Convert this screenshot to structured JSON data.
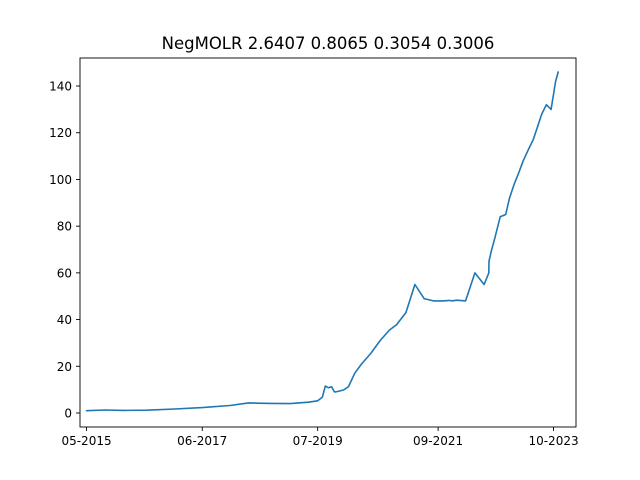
{
  "chart_data": {
    "type": "line",
    "title": "NegMOLR  2.6407 0.8065 0.3054 0.3006",
    "xlabel": "",
    "ylabel": "",
    "x_tick_labels": [
      "05-2015",
      "06-2017",
      "07-2019",
      "09-2021",
      "10-2023"
    ],
    "x_tick_dates": [
      "2015-05-01",
      "2017-06-01",
      "2019-07-01",
      "2021-09-01",
      "2023-10-01"
    ],
    "xlim": [
      "2015-03-19",
      "2024-02-26"
    ],
    "yticks": [
      0,
      20,
      40,
      60,
      80,
      100,
      120,
      140
    ],
    "ylim": [
      -6,
      152
    ],
    "grid": false,
    "colors": {
      "series": "#1f77b4"
    },
    "series": [
      {
        "x": [
          "2015-05-01",
          "2015-09-01",
          "2016-01-01",
          "2016-06-01",
          "2016-12-01",
          "2017-06-01",
          "2017-12-01",
          "2018-04-01",
          "2018-06-01",
          "2018-09-01",
          "2019-01-01",
          "2019-05-01",
          "2019-07-01",
          "2019-08-01",
          "2019-08-20",
          "2019-09-10",
          "2019-10-01",
          "2019-10-20",
          "2019-11-10",
          "2019-12-20",
          "2020-01-20",
          "2020-03-01",
          "2020-04-15",
          "2020-06-15",
          "2020-08-15",
          "2020-10-15",
          "2020-12-01",
          "2021-02-01",
          "2021-04-01",
          "2021-06-01",
          "2021-08-01",
          "2021-09-01",
          "2021-10-01",
          "2021-11-15",
          "2021-12-01",
          "2022-01-01",
          "2022-03-01",
          "2022-05-01",
          "2022-07-01",
          "2022-08-01",
          "2022-08-02",
          "2022-08-20",
          "2022-09-10",
          "2022-10-15",
          "2022-11-20",
          "2022-12-15",
          "2023-01-15",
          "2023-02-15",
          "2023-03-15",
          "2023-04-20",
          "2023-05-20",
          "2023-06-15",
          "2023-07-15",
          "2023-08-15",
          "2023-09-15",
          "2023-10-15",
          "2023-11-01"
        ],
        "values": [
          1.0,
          1.3,
          1.1,
          1.2,
          1.7,
          2.3,
          3.2,
          4.3,
          4.2,
          4.1,
          4.0,
          4.6,
          5.2,
          6.8,
          11.5,
          10.8,
          11.2,
          9.0,
          9.2,
          9.9,
          11.3,
          17.0,
          21.0,
          25.5,
          31.0,
          35.5,
          37.8,
          43.0,
          55.0,
          49.0,
          48.0,
          48.0,
          48.0,
          48.2,
          48.0,
          48.3,
          48.0,
          60.0,
          55.0,
          60.0,
          65.0,
          70.0,
          75.0,
          84.0,
          85.0,
          92.0,
          98.0,
          103.0,
          108.0,
          113.0,
          117.0,
          122.0,
          128.0,
          132.0,
          130.0,
          142.0,
          146.0
        ]
      }
    ]
  }
}
